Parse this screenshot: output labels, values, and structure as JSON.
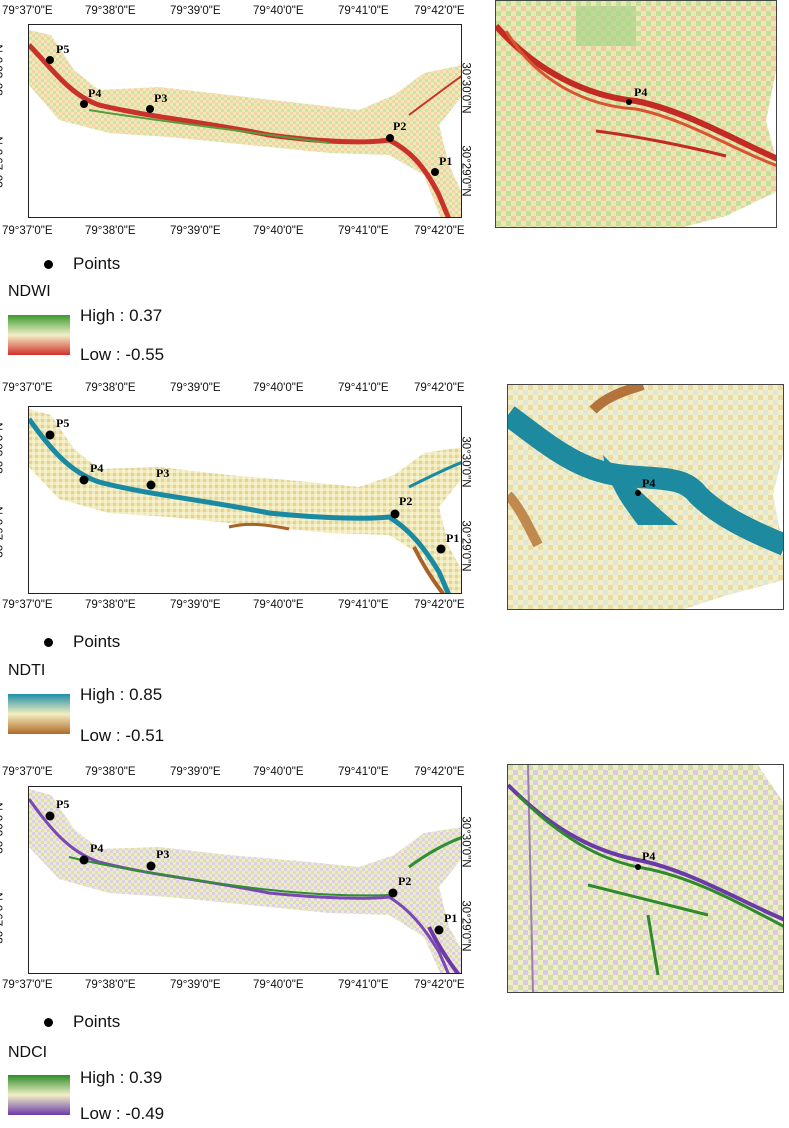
{
  "lon_labels": [
    "79°37'0\"E",
    "79°38'0\"E",
    "79°39'0\"E",
    "79°40'0\"E",
    "79°41'0\"E",
    "79°42'0\"E"
  ],
  "lat_labels": [
    "30°30'0\"N",
    "30°29'0\"N"
  ],
  "points_legend": "Points",
  "point_labels": [
    "P1",
    "P2",
    "P3",
    "P4",
    "P5"
  ],
  "zoom_point_label": "P4",
  "panels": [
    {
      "index": "NDWI",
      "high_label": "High : 0.37",
      "low_label": "Low : -0.55",
      "colors": {
        "high": "#3a9a2c",
        "mid": "#f2f0c8",
        "low": "#d0302a"
      }
    },
    {
      "index": "NDTI",
      "high_label": "High : 0.85",
      "low_label": "Low : -0.51",
      "colors": {
        "high": "#1f8fa8",
        "mid": "#f3eebf",
        "low": "#b06a2a"
      }
    },
    {
      "index": "NDCI",
      "high_label": "High : 0.39",
      "low_label": "Low : -0.49",
      "colors": {
        "high": "#2e8b2a",
        "mid": "#f1f0c6",
        "low": "#6b3aa8"
      }
    }
  ]
}
